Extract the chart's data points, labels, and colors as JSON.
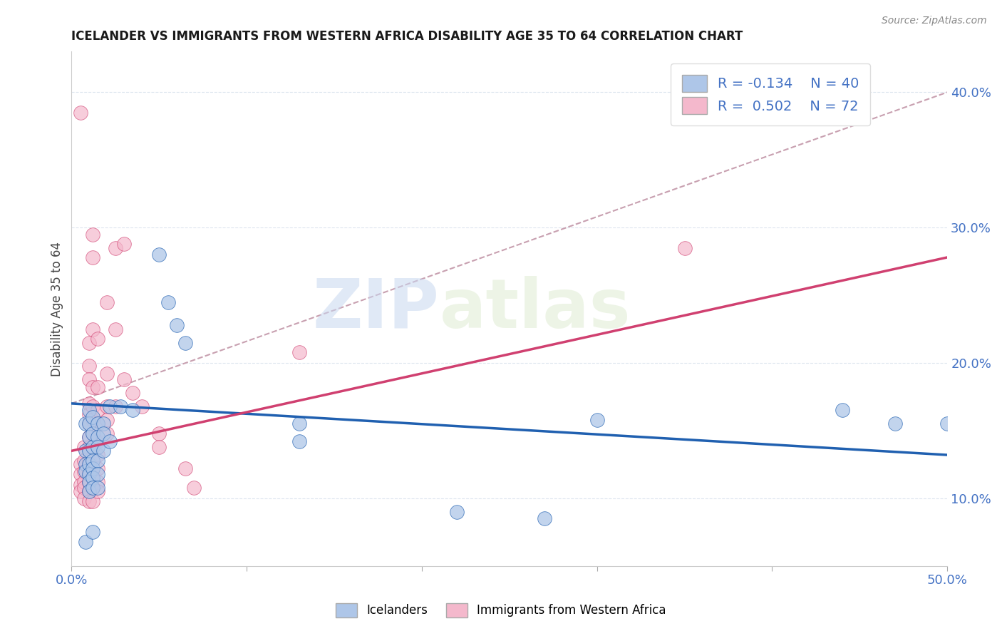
{
  "title": "ICELANDER VS IMMIGRANTS FROM WESTERN AFRICA DISABILITY AGE 35 TO 64 CORRELATION CHART",
  "source": "Source: ZipAtlas.com",
  "ylabel": "Disability Age 35 to 64",
  "xlim": [
    0.0,
    0.5
  ],
  "ylim": [
    0.05,
    0.43
  ],
  "yticks_right": [
    0.1,
    0.2,
    0.3,
    0.4
  ],
  "ytick_labels_right": [
    "10.0%",
    "20.0%",
    "30.0%",
    "40.0%"
  ],
  "color_blue": "#aec6e8",
  "color_pink": "#f4b8cc",
  "line_color_blue": "#2060b0",
  "line_color_pink": "#d04070",
  "line_color_dashed": "#c8a0b0",
  "watermark_zip": "ZIP",
  "watermark_atlas": "atlas",
  "blue_scatter": [
    [
      0.008,
      0.155
    ],
    [
      0.008,
      0.135
    ],
    [
      0.008,
      0.125
    ],
    [
      0.008,
      0.12
    ],
    [
      0.01,
      0.165
    ],
    [
      0.01,
      0.155
    ],
    [
      0.01,
      0.145
    ],
    [
      0.01,
      0.135
    ],
    [
      0.01,
      0.125
    ],
    [
      0.01,
      0.118
    ],
    [
      0.01,
      0.112
    ],
    [
      0.01,
      0.105
    ],
    [
      0.012,
      0.16
    ],
    [
      0.012,
      0.148
    ],
    [
      0.012,
      0.138
    ],
    [
      0.012,
      0.128
    ],
    [
      0.012,
      0.122
    ],
    [
      0.012,
      0.115
    ],
    [
      0.012,
      0.108
    ],
    [
      0.015,
      0.155
    ],
    [
      0.015,
      0.145
    ],
    [
      0.015,
      0.138
    ],
    [
      0.015,
      0.128
    ],
    [
      0.015,
      0.118
    ],
    [
      0.015,
      0.108
    ],
    [
      0.018,
      0.155
    ],
    [
      0.018,
      0.148
    ],
    [
      0.018,
      0.135
    ],
    [
      0.022,
      0.168
    ],
    [
      0.022,
      0.142
    ],
    [
      0.028,
      0.168
    ],
    [
      0.035,
      0.165
    ],
    [
      0.05,
      0.28
    ],
    [
      0.055,
      0.245
    ],
    [
      0.06,
      0.228
    ],
    [
      0.065,
      0.215
    ],
    [
      0.13,
      0.155
    ],
    [
      0.13,
      0.142
    ],
    [
      0.3,
      0.158
    ],
    [
      0.44,
      0.165
    ],
    [
      0.47,
      0.155
    ],
    [
      0.008,
      0.068
    ],
    [
      0.012,
      0.075
    ],
    [
      0.22,
      0.09
    ],
    [
      0.27,
      0.085
    ],
    [
      0.5,
      0.155
    ]
  ],
  "pink_scatter": [
    [
      0.005,
      0.125
    ],
    [
      0.005,
      0.118
    ],
    [
      0.005,
      0.11
    ],
    [
      0.005,
      0.105
    ],
    [
      0.007,
      0.138
    ],
    [
      0.007,
      0.128
    ],
    [
      0.007,
      0.12
    ],
    [
      0.007,
      0.112
    ],
    [
      0.007,
      0.108
    ],
    [
      0.007,
      0.1
    ],
    [
      0.01,
      0.215
    ],
    [
      0.01,
      0.198
    ],
    [
      0.01,
      0.188
    ],
    [
      0.01,
      0.17
    ],
    [
      0.01,
      0.162
    ],
    [
      0.01,
      0.155
    ],
    [
      0.01,
      0.145
    ],
    [
      0.01,
      0.138
    ],
    [
      0.01,
      0.128
    ],
    [
      0.01,
      0.12
    ],
    [
      0.01,
      0.112
    ],
    [
      0.01,
      0.105
    ],
    [
      0.01,
      0.098
    ],
    [
      0.012,
      0.295
    ],
    [
      0.012,
      0.278
    ],
    [
      0.012,
      0.225
    ],
    [
      0.012,
      0.182
    ],
    [
      0.012,
      0.168
    ],
    [
      0.012,
      0.158
    ],
    [
      0.012,
      0.148
    ],
    [
      0.012,
      0.138
    ],
    [
      0.012,
      0.128
    ],
    [
      0.012,
      0.118
    ],
    [
      0.012,
      0.108
    ],
    [
      0.012,
      0.098
    ],
    [
      0.015,
      0.218
    ],
    [
      0.015,
      0.182
    ],
    [
      0.015,
      0.165
    ],
    [
      0.015,
      0.155
    ],
    [
      0.015,
      0.142
    ],
    [
      0.015,
      0.132
    ],
    [
      0.015,
      0.122
    ],
    [
      0.015,
      0.112
    ],
    [
      0.015,
      0.105
    ],
    [
      0.02,
      0.245
    ],
    [
      0.02,
      0.192
    ],
    [
      0.02,
      0.168
    ],
    [
      0.02,
      0.158
    ],
    [
      0.02,
      0.148
    ],
    [
      0.025,
      0.285
    ],
    [
      0.025,
      0.225
    ],
    [
      0.025,
      0.168
    ],
    [
      0.03,
      0.288
    ],
    [
      0.03,
      0.188
    ],
    [
      0.035,
      0.178
    ],
    [
      0.04,
      0.168
    ],
    [
      0.05,
      0.148
    ],
    [
      0.05,
      0.138
    ],
    [
      0.065,
      0.122
    ],
    [
      0.07,
      0.108
    ],
    [
      0.13,
      0.208
    ],
    [
      0.005,
      0.385
    ],
    [
      0.35,
      0.285
    ]
  ],
  "blue_line": [
    [
      0.0,
      0.17
    ],
    [
      0.5,
      0.132
    ]
  ],
  "pink_line": [
    [
      0.0,
      0.135
    ],
    [
      0.5,
      0.278
    ]
  ],
  "dashed_line": [
    [
      0.0,
      0.17
    ],
    [
      0.5,
      0.4
    ]
  ],
  "background_color": "#ffffff",
  "grid_color": "#dde5ee"
}
